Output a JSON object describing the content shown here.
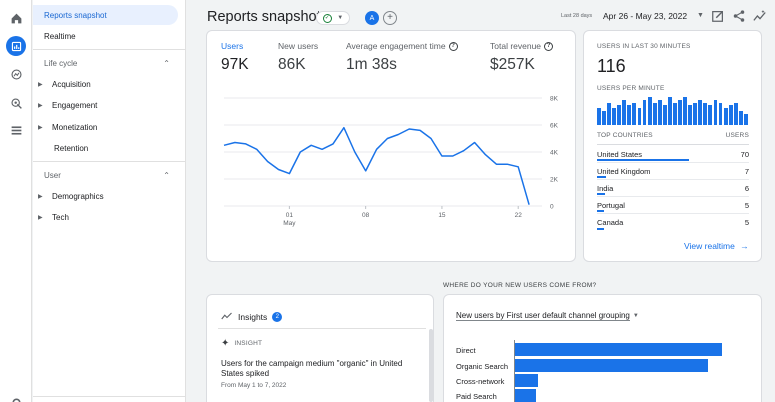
{
  "rail": {
    "icons": [
      "home-icon",
      "reports-icon",
      "explore-icon",
      "advertising-icon",
      "configure-icon",
      "settings-icon"
    ]
  },
  "nav": {
    "reports_snapshot": "Reports snapshot",
    "realtime": "Realtime",
    "lifecycle_label": "Life cycle",
    "acquisition": "Acquisition",
    "engagement": "Engagement",
    "monetization": "Monetization",
    "retention": "Retention",
    "user_label": "User",
    "demographics": "Demographics",
    "tech": "Tech"
  },
  "header": {
    "title": "Reports snapshot",
    "avatar_letter": "A",
    "add_symbol": "+",
    "date_hint": "Last 28 days",
    "date_range": "Apr 26 - May 23, 2022"
  },
  "metrics": [
    {
      "label": "Users",
      "value": "97K"
    },
    {
      "label": "New users",
      "value": "86K"
    },
    {
      "label": "Average engagement time",
      "value": "1m 38s"
    },
    {
      "label": "Total revenue",
      "value": "$257K"
    }
  ],
  "chart_data": {
    "type": "line",
    "title": "",
    "xlabel": "",
    "ylabel": "",
    "x_ticks": [
      {
        "day": 1,
        "label": "01",
        "sublabel": "May"
      },
      {
        "day": 8,
        "label": "08",
        "sublabel": ""
      },
      {
        "day": 15,
        "label": "15",
        "sublabel": ""
      },
      {
        "day": 22,
        "label": "22",
        "sublabel": ""
      }
    ],
    "y_ticks": [
      {
        "value": 8000,
        "label": "8K"
      },
      {
        "value": 6000,
        "label": "6K"
      },
      {
        "value": 4000,
        "label": "4K"
      },
      {
        "value": 2000,
        "label": "2K"
      },
      {
        "value": 0,
        "label": "0"
      }
    ],
    "ylim": [
      0,
      8000
    ],
    "xlim": [
      -5,
      24
    ],
    "series": [
      {
        "color": "#1a73e8",
        "x": [
          -5,
          -4,
          -3,
          -2,
          -1,
          0,
          1,
          2,
          3,
          4,
          5,
          6,
          7,
          8,
          9,
          10,
          11,
          12,
          13,
          14,
          15,
          16,
          17,
          18,
          19,
          20,
          21,
          22,
          23
        ],
        "values": [
          4500,
          4700,
          4600,
          4200,
          3300,
          2700,
          2400,
          4000,
          4500,
          4200,
          4600,
          5800,
          4000,
          2600,
          4200,
          5000,
          5300,
          5700,
          5600,
          5000,
          3700,
          3700,
          4100,
          4700,
          3800,
          3100,
          3100,
          2900,
          100
        ]
      }
    ]
  },
  "realtime": {
    "users_label": "USERS IN LAST 30 MINUTES",
    "users_value": "116",
    "per_minute_label": "USERS PER MINUTE",
    "per_minute_values": [
      6,
      5,
      8,
      6,
      7,
      9,
      7,
      8,
      6,
      9,
      10,
      8,
      9,
      7,
      10,
      8,
      9,
      10,
      7,
      8,
      9,
      8,
      7,
      9,
      8,
      6,
      7,
      8,
      5,
      4
    ],
    "top_countries_label": "TOP COUNTRIES",
    "users_col_label": "USERS",
    "countries": [
      {
        "name": "United States",
        "value": "70",
        "share": 1.0
      },
      {
        "name": "United Kingdom",
        "value": "7",
        "share": 0.1
      },
      {
        "name": "India",
        "value": "6",
        "share": 0.086
      },
      {
        "name": "Portugal",
        "value": "5",
        "share": 0.071
      },
      {
        "name": "Canada",
        "value": "5",
        "share": 0.071
      }
    ],
    "view_link": "View realtime",
    "view_arrow": "→"
  },
  "new_users": {
    "section_title": "WHERE DO YOUR NEW USERS COME FROM?",
    "dropdown_label": "New users by First user default channel grouping",
    "channels": [
      {
        "name": "Direct",
        "share": 1.0
      },
      {
        "name": "Organic Search",
        "share": 0.93
      },
      {
        "name": "Cross-network",
        "share": 0.11
      },
      {
        "name": "Paid Search",
        "share": 0.1
      }
    ]
  },
  "insights": {
    "title": "Insights",
    "count": "2",
    "tag": "INSIGHT",
    "text": "Users for the campaign medium \"organic\" in United States spiked",
    "date": "From May 1 to 7, 2022"
  },
  "colors": {
    "accent": "#1a73e8",
    "selected_bg": "#e8f0fe",
    "success": "#188038"
  }
}
